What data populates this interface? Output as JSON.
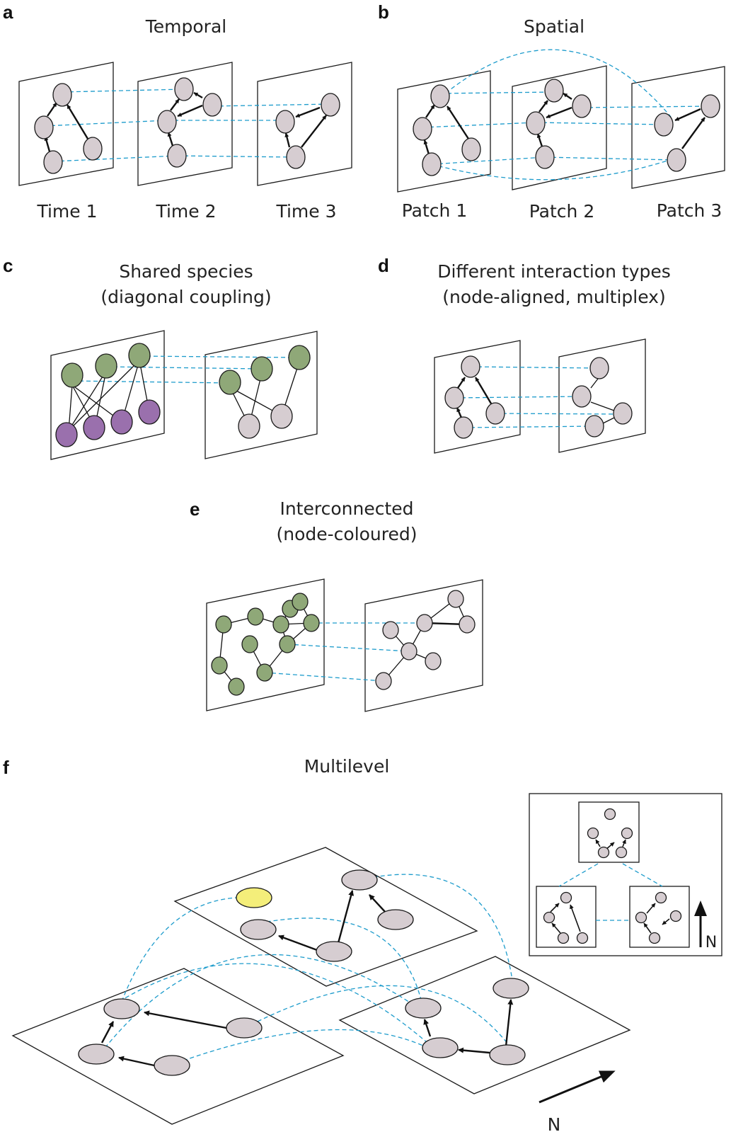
{
  "colors": {
    "node_default": "#d6cdd1",
    "node_resource": "#8fa878",
    "node_consumer": "#9a70ad",
    "node_highlight": "#f4ee7a",
    "coupling": "#1e9ccc",
    "edge": "#111111"
  },
  "panels": [
    {
      "letter": "a",
      "title": [
        "Temporal"
      ],
      "layer_labels": [
        "Time 1",
        "Time 2",
        "Time 3"
      ]
    },
    {
      "letter": "b",
      "title": [
        "Spatial"
      ],
      "layer_labels": [
        "Patch 1",
        "Patch 2",
        "Patch 3"
      ]
    },
    {
      "letter": "c",
      "title": [
        "Shared species",
        "(diagonal coupling)"
      ]
    },
    {
      "letter": "d",
      "title": [
        "Different interaction types",
        "(node-aligned, multiplex)"
      ]
    },
    {
      "letter": "e",
      "title": [
        "Interconnected",
        "(node-coloured)"
      ]
    },
    {
      "letter": "f",
      "title": [
        "Multilevel"
      ],
      "direction_labels": [
        "N",
        "N"
      ]
    }
  ]
}
